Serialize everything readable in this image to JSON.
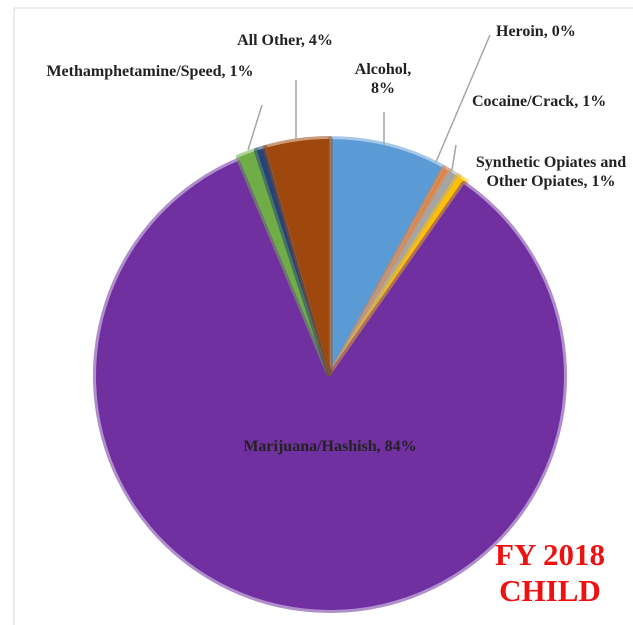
{
  "chart_data": {
    "type": "pie",
    "categories": [
      "Alcohol",
      "Heroin",
      "Cocaine/Crack",
      "Synthetic Opiates and Other Opiates",
      "Marijuana/Hashish",
      "Methamphetamine/Speed",
      null,
      "All Other"
    ],
    "values": [
      8,
      0.4,
      0.7,
      0.6,
      84,
      1.3,
      0.6,
      4.4
    ],
    "value_labels": [
      "Alcohol, 8%",
      "Heroin, 0%",
      "Cocaine/Crack, 1%",
      "Synthetic Opiates and Other Opiates, 1%",
      "Marijuana/Hashish, 84%",
      "Methamphetamine/Speed, 1%",
      null,
      "All Other, 4%"
    ],
    "colors": [
      "#5b9bd5",
      "#ed7d31",
      "#a5a5a5",
      "#ffc000",
      "#7030a0",
      "#70ad47",
      "#264478",
      "#9e480e"
    ],
    "annotation": "FY 2018 CHILD"
  }
}
